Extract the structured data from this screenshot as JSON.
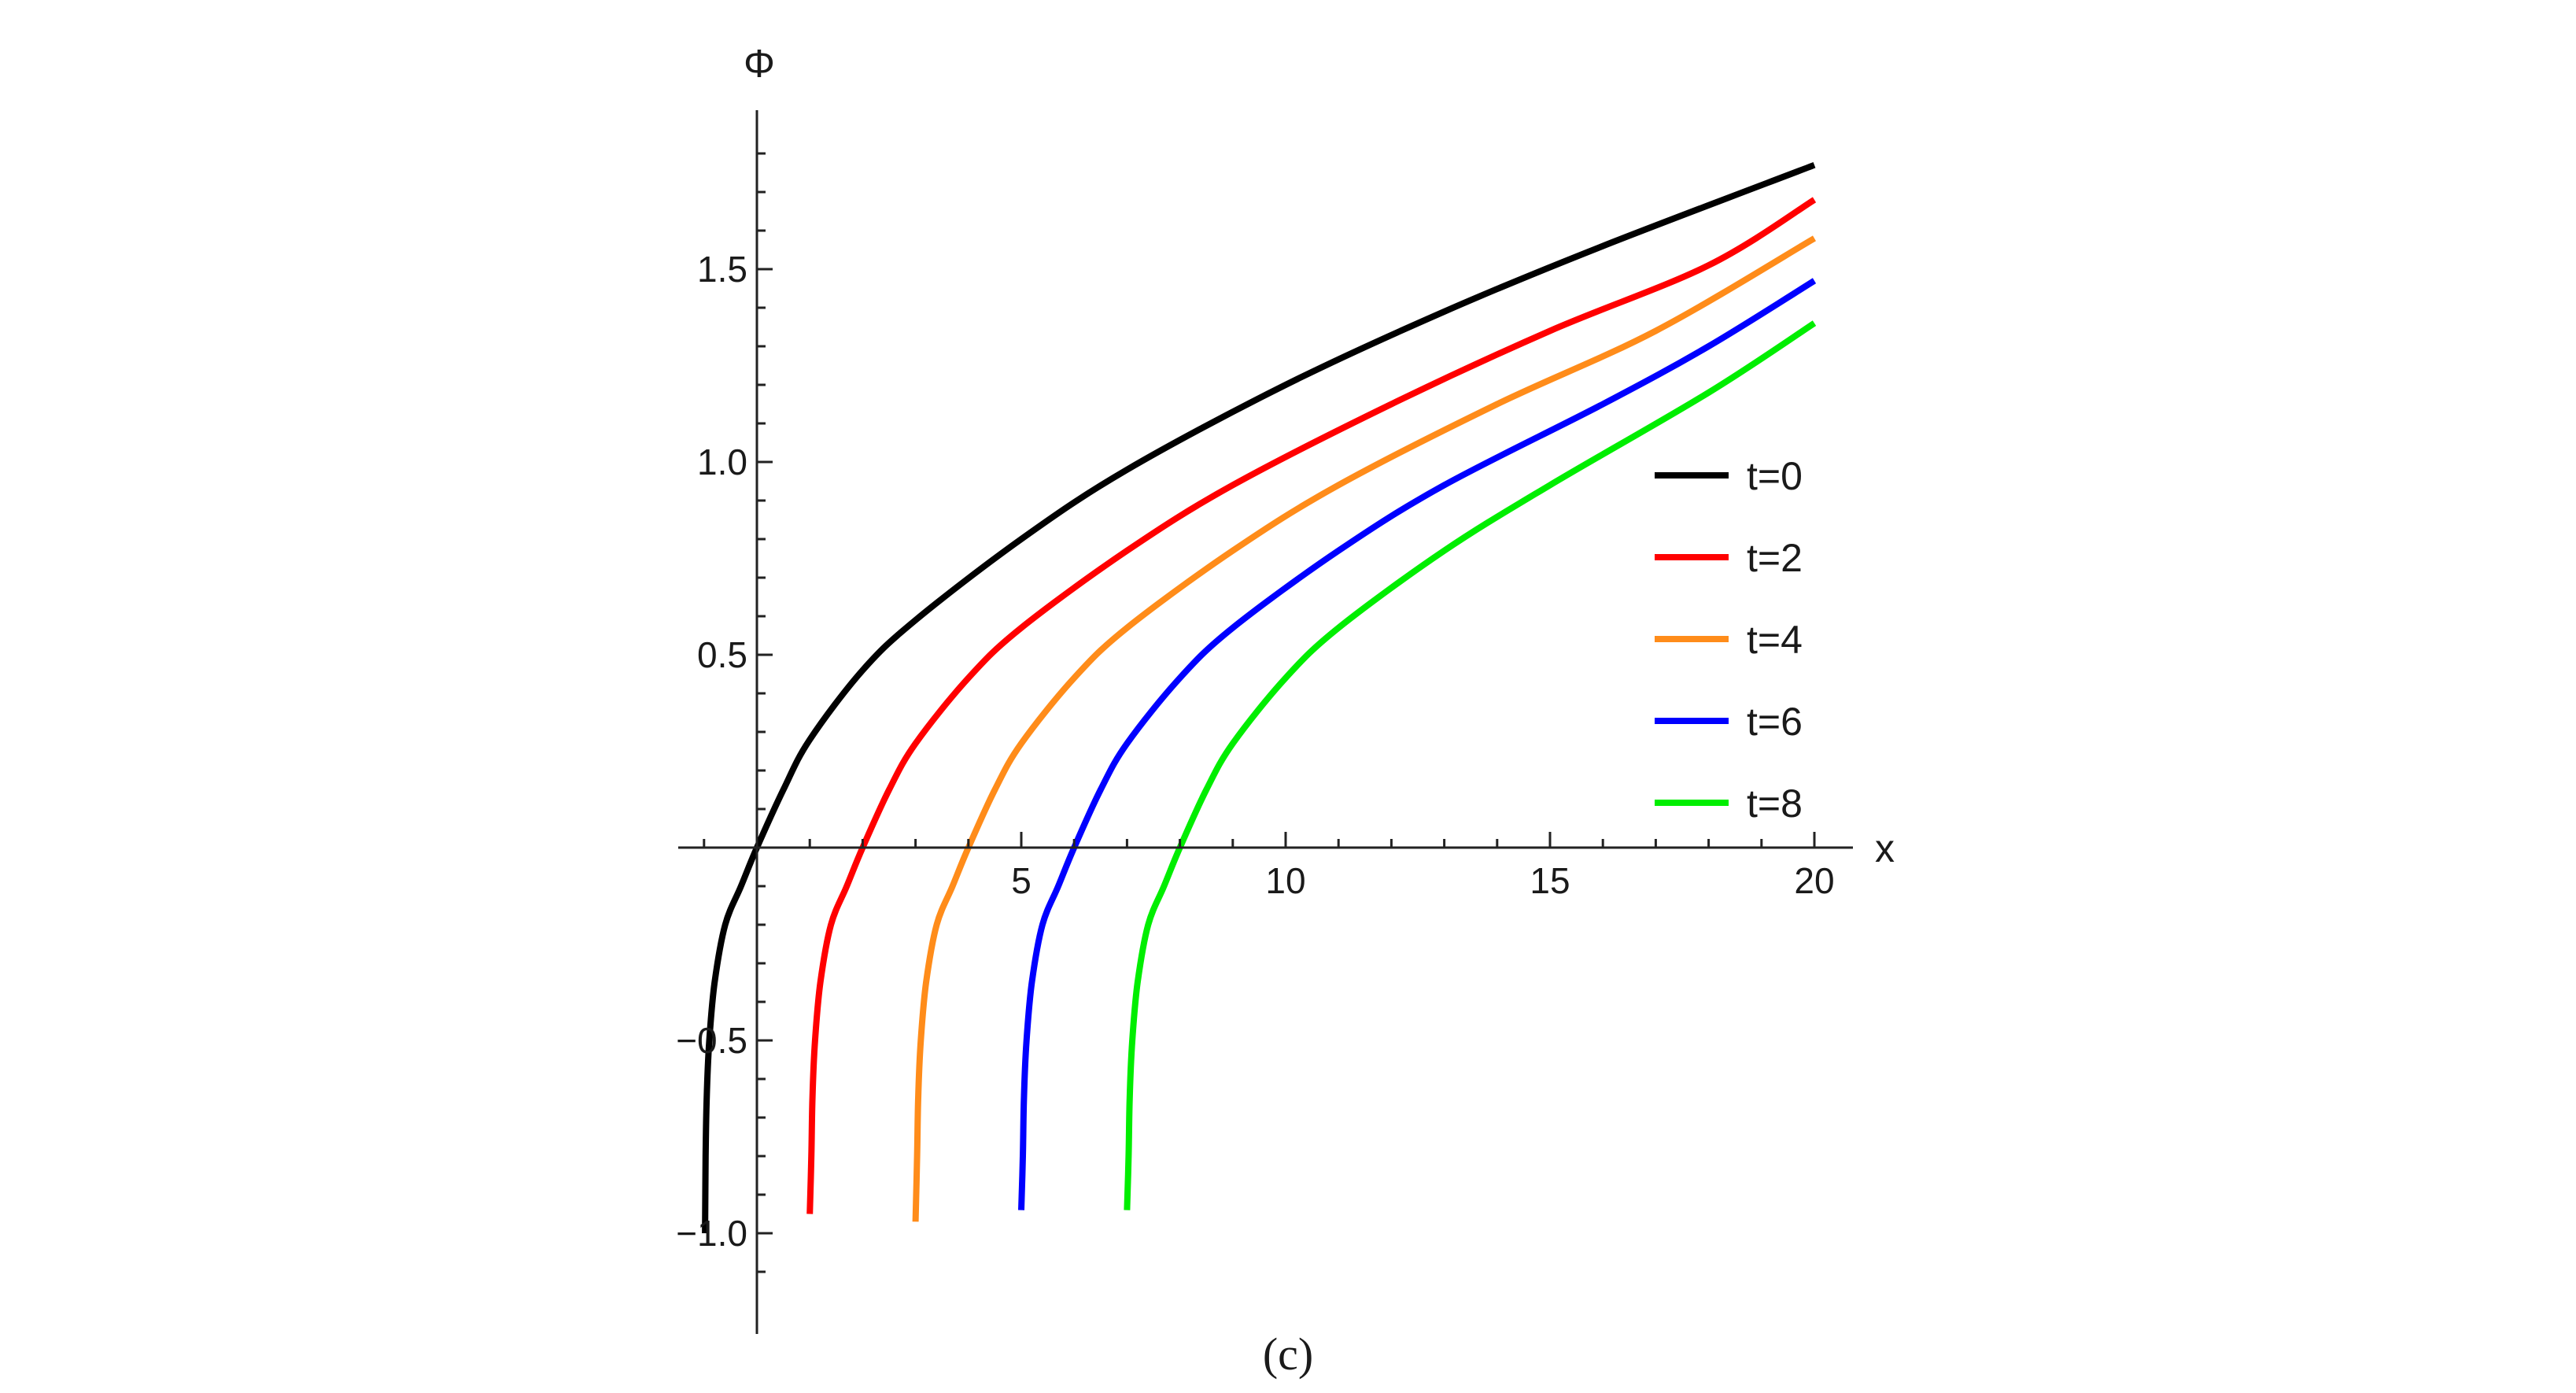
{
  "chart_data": {
    "type": "line",
    "title": "",
    "xlabel": "x",
    "ylabel": "Φ",
    "xlim": [
      -1.5,
      20.5
    ],
    "ylim": [
      -1.15,
      1.92
    ],
    "x_ticks": [
      5,
      10,
      15,
      20
    ],
    "x_tick_labels": [
      "5",
      "10",
      "15",
      "20"
    ],
    "y_ticks": [
      -1.0,
      -0.5,
      0.5,
      1.0,
      1.5
    ],
    "y_tick_labels": [
      "−1.0",
      "−0.5",
      "0.5",
      "1.0",
      "1.5"
    ],
    "grid": false,
    "legend_position": "right",
    "caption": "(c)",
    "series": [
      {
        "name": "t=0",
        "color": "#000000",
        "x": [
          -0.98,
          -0.97,
          -0.95,
          -0.9,
          -0.8,
          -0.6,
          -0.3,
          0,
          0.5,
          1,
          2,
          3,
          5,
          7,
          10,
          13,
          16,
          20
        ],
        "y": [
          -1.0,
          -0.8,
          -0.65,
          -0.5,
          -0.35,
          -0.2,
          -0.1,
          0,
          0.15,
          0.28,
          0.46,
          0.59,
          0.8,
          0.98,
          1.2,
          1.39,
          1.56,
          1.77
        ]
      },
      {
        "name": "t=2",
        "color": "#ff0000",
        "x": [
          1.0,
          1.03,
          1.05,
          1.1,
          1.2,
          1.4,
          1.7,
          2,
          2.5,
          3,
          4,
          5,
          7,
          9,
          12,
          15,
          18,
          20
        ],
        "y": [
          -0.95,
          -0.8,
          -0.65,
          -0.5,
          -0.35,
          -0.2,
          -0.1,
          0,
          0.15,
          0.27,
          0.44,
          0.57,
          0.77,
          0.94,
          1.15,
          1.34,
          1.51,
          1.68
        ]
      },
      {
        "name": "t=4",
        "color": "#ff8c1a",
        "x": [
          3.0,
          3.03,
          3.05,
          3.1,
          3.2,
          3.4,
          3.7,
          4,
          4.5,
          5,
          6,
          7,
          9,
          11,
          14,
          17,
          20
        ],
        "y": [
          -0.97,
          -0.8,
          -0.65,
          -0.5,
          -0.35,
          -0.2,
          -0.1,
          0,
          0.15,
          0.27,
          0.44,
          0.57,
          0.77,
          0.94,
          1.15,
          1.34,
          1.58
        ]
      },
      {
        "name": "t=6",
        "color": "#0000ff",
        "x": [
          5.0,
          5.03,
          5.05,
          5.1,
          5.2,
          5.4,
          5.7,
          6,
          6.5,
          7,
          8,
          9,
          11,
          13,
          16,
          18,
          20
        ],
        "y": [
          -0.94,
          -0.8,
          -0.65,
          -0.5,
          -0.35,
          -0.2,
          -0.1,
          0,
          0.15,
          0.27,
          0.44,
          0.57,
          0.77,
          0.94,
          1.15,
          1.3,
          1.47
        ]
      },
      {
        "name": "t=8",
        "color": "#00ee00",
        "x": [
          7.0,
          7.03,
          7.05,
          7.1,
          7.2,
          7.4,
          7.7,
          8,
          8.5,
          9,
          10,
          11,
          13,
          15,
          18,
          20
        ],
        "y": [
          -0.94,
          -0.8,
          -0.65,
          -0.5,
          -0.35,
          -0.2,
          -0.1,
          0,
          0.15,
          0.27,
          0.44,
          0.57,
          0.77,
          0.94,
          1.18,
          1.36
        ]
      }
    ]
  }
}
